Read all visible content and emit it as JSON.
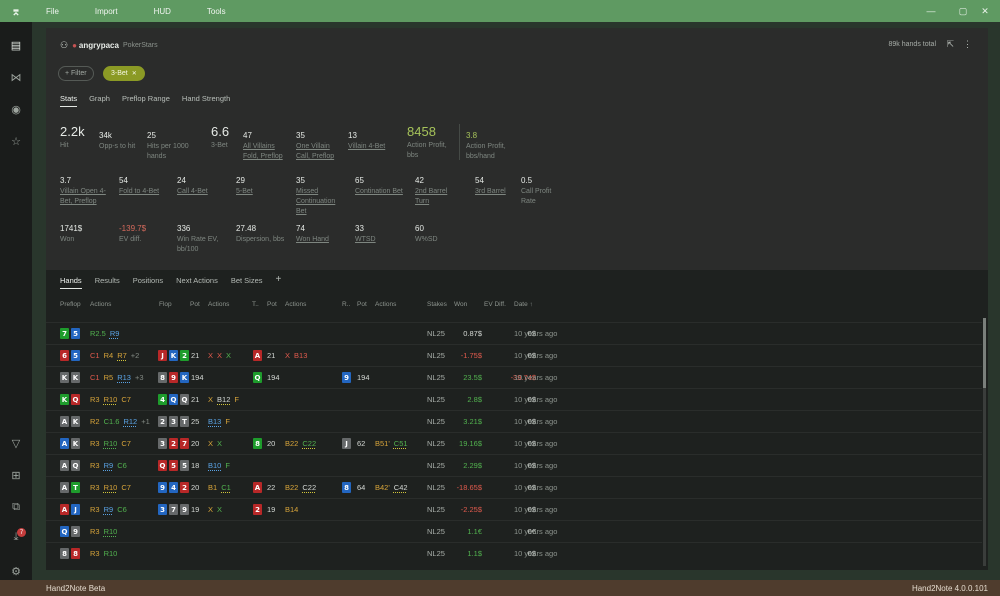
{
  "menubar": {
    "logo": "⌆",
    "items": [
      "File",
      "Import",
      "HUD",
      "Tools"
    ],
    "controls": [
      "—",
      "▢",
      "✕"
    ]
  },
  "statusbar": {
    "app_name": "Hand2Note Beta",
    "version": "Hand2Note 4.0.0.101"
  },
  "sidebar": {
    "badge": "7"
  },
  "header": {
    "player": "angrypaca",
    "site": "PokerStars",
    "hands_total": "89k hands total"
  },
  "filters": {
    "add_filter": "+ Filter",
    "chip": "3-Bet",
    "chip_close": "✕"
  },
  "top_tabs": [
    "Stats",
    "Graph",
    "Preflop Range",
    "Hand Strength"
  ],
  "stats": {
    "row1": [
      {
        "value": "2.2k",
        "label": "Hit"
      },
      {
        "value": "34k",
        "label": "Opp-s to hit"
      },
      {
        "value": "25",
        "label": "Hits per 1000 hands"
      },
      {
        "value": "6.6",
        "label": "3-Bet"
      },
      {
        "value": "47",
        "label": "All Villains Fold, Preflop"
      },
      {
        "value": "35",
        "label": "One Villain Call, Preflop"
      },
      {
        "value": "13",
        "label": "Villain 4-Bet"
      },
      {
        "value": "8458",
        "label": "Action Profit, bbs"
      },
      {
        "value": "3.8",
        "label": "Action Profit, bbs/hand"
      }
    ],
    "row2": [
      {
        "value": "3.7",
        "label": "Villain Open 4-Bet, Preflop"
      },
      {
        "value": "54",
        "label": "Fold to 4-Bet"
      },
      {
        "value": "24",
        "label": "Call 4-Bet"
      },
      {
        "value": "29",
        "label": "5-Bet"
      },
      {
        "value": "35",
        "label": "Missed Continuation Bet"
      },
      {
        "value": "65",
        "label": "Contination Bet"
      },
      {
        "value": "42",
        "label": "2nd Barrel Turn"
      },
      {
        "value": "54",
        "label": "3rd Barrel"
      },
      {
        "value": "0.5",
        "label": "Call Profit Rate"
      }
    ],
    "row3": [
      {
        "value": "1741$",
        "label": "Won"
      },
      {
        "value": "-139.7$",
        "label": "EV diff."
      },
      {
        "value": "336",
        "label": "Win Rate EV, bb/100"
      },
      {
        "value": "27.48",
        "label": "Dispersion, bbs"
      },
      {
        "value": "74",
        "label": "Won Hand"
      },
      {
        "value": "33",
        "label": "WTSD"
      },
      {
        "value": "60",
        "label": "W%SD"
      }
    ]
  },
  "bottom_tabs": [
    "Hands",
    "Results",
    "Positions",
    "Next Actions",
    "Bet Sizes",
    "+"
  ],
  "columns": [
    "Preflop",
    "Actions",
    "Flop",
    "Pot",
    "Actions",
    "T..",
    "Pot",
    "Actions",
    "R..",
    "Pot",
    "Actions",
    "Stakes",
    "Won",
    "EV Diff.",
    "Date ↑"
  ],
  "rows": [
    {
      "cards": [
        [
          "7",
          "green"
        ],
        [
          "5",
          "blue"
        ]
      ],
      "pre": [
        [
          "R2.5",
          "green",
          ""
        ],
        [
          "R9",
          "blue",
          "u-blue"
        ]
      ],
      "flop": [],
      "fpot": "",
      "fact": [],
      "turn": [],
      "tpot": "",
      "tact": [],
      "river": [],
      "rpot": "",
      "ract": [],
      "stakes": "NL25",
      "won": "0.87$",
      "won_color": "a-white",
      "ev": "0$",
      "ev_color": "a-white",
      "date": "10 years ago"
    },
    {
      "cards": [
        [
          "6",
          "red"
        ],
        [
          "5",
          "blue"
        ]
      ],
      "pre": [
        [
          "C1",
          "red",
          ""
        ],
        [
          "R4",
          "orange",
          ""
        ],
        [
          "R7",
          "orange",
          "u-yellow"
        ],
        [
          "+2",
          "muted",
          ""
        ]
      ],
      "flop": [
        [
          "J",
          "red"
        ],
        [
          "K",
          "blue"
        ],
        [
          "2",
          "green"
        ]
      ],
      "fpot": "21",
      "fact": [
        [
          "X",
          "red",
          ""
        ],
        [
          "X",
          "red",
          ""
        ],
        [
          "X",
          "green",
          ""
        ]
      ],
      "turn": [
        [
          "A",
          "red"
        ]
      ],
      "tpot": "21",
      "tact": [
        [
          "X",
          "red",
          ""
        ],
        [
          "B13",
          "red",
          ""
        ]
      ],
      "river": [],
      "rpot": "",
      "ract": [],
      "stakes": "NL25",
      "won": "-1.75$",
      "won_color": "a-red",
      "ev": "0$",
      "ev_color": "a-white",
      "date": "10 years ago"
    },
    {
      "cards": [
        [
          "K",
          "gray"
        ],
        [
          "K",
          "gray"
        ]
      ],
      "pre": [
        [
          "C1",
          "red",
          ""
        ],
        [
          "R5",
          "orange",
          ""
        ],
        [
          "R13",
          "blue",
          "u-blue"
        ],
        [
          "+3",
          "muted",
          ""
        ]
      ],
      "flop": [
        [
          "8",
          "gray"
        ],
        [
          "9",
          "red"
        ],
        [
          "K",
          "blue"
        ]
      ],
      "fpot": "194",
      "fact": [],
      "turn": [
        [
          "Q",
          "green"
        ]
      ],
      "tpot": "194",
      "tact": [],
      "river": [
        [
          "9",
          "blue"
        ]
      ],
      "rpot": "194",
      "ract": [],
      "stakes": "NL25",
      "won": "23.5$",
      "won_color": "a-green",
      "ev": "-39.74$",
      "ev_color": "a-red",
      "date": "10 years ago"
    },
    {
      "cards": [
        [
          "K",
          "green"
        ],
        [
          "Q",
          "red"
        ]
      ],
      "pre": [
        [
          "R3",
          "orange",
          ""
        ],
        [
          "R10",
          "orange",
          "u-yellow"
        ],
        [
          "C7",
          "orange",
          ""
        ]
      ],
      "flop": [
        [
          "4",
          "green"
        ],
        [
          "Q",
          "blue"
        ],
        [
          "Q",
          "gray"
        ]
      ],
      "fpot": "21",
      "fact": [
        [
          "X",
          "orange",
          ""
        ],
        [
          "B12",
          "white",
          "u-yellow"
        ],
        [
          "F",
          "orange",
          ""
        ]
      ],
      "turn": [],
      "tpot": "",
      "tact": [],
      "river": [],
      "rpot": "",
      "ract": [],
      "stakes": "NL25",
      "won": "2.8$",
      "won_color": "a-green",
      "ev": "0$",
      "ev_color": "a-white",
      "date": "10 years ago"
    },
    {
      "cards": [
        [
          "A",
          "gray"
        ],
        [
          "K",
          "gray"
        ]
      ],
      "pre": [
        [
          "R2",
          "orange",
          ""
        ],
        [
          "C1.6",
          "green",
          ""
        ],
        [
          "R12",
          "blue",
          "u-blue"
        ],
        [
          "+1",
          "muted",
          ""
        ]
      ],
      "flop": [
        [
          "2",
          "gray"
        ],
        [
          "3",
          "gray"
        ],
        [
          "T",
          "gray"
        ]
      ],
      "fpot": "25",
      "fact": [
        [
          "B13",
          "blue",
          "u-blue"
        ],
        [
          "F",
          "orange",
          ""
        ]
      ],
      "turn": [],
      "tpot": "",
      "tact": [],
      "river": [],
      "rpot": "",
      "ract": [],
      "stakes": "NL25",
      "won": "3.21$",
      "won_color": "a-green",
      "ev": "0$",
      "ev_color": "a-white",
      "date": "10 years ago"
    },
    {
      "cards": [
        [
          "A",
          "blue"
        ],
        [
          "K",
          "gray"
        ]
      ],
      "pre": [
        [
          "R3",
          "orange",
          ""
        ],
        [
          "R10",
          "green",
          "u-green"
        ],
        [
          "C7",
          "orange",
          ""
        ]
      ],
      "flop": [
        [
          "3",
          "gray"
        ],
        [
          "2",
          "red"
        ],
        [
          "7",
          "red"
        ]
      ],
      "fpot": "20",
      "fact": [
        [
          "X",
          "orange",
          ""
        ],
        [
          "X",
          "green",
          ""
        ]
      ],
      "turn": [
        [
          "8",
          "green"
        ]
      ],
      "tpot": "20",
      "tact": [
        [
          "B22",
          "orange",
          ""
        ],
        [
          "C22",
          "green",
          "u-yellow"
        ]
      ],
      "river": [
        [
          "J",
          "gray"
        ]
      ],
      "rpot": "62",
      "ract": [
        [
          "B51'",
          "orange",
          ""
        ],
        [
          "C51",
          "green",
          "u-yellow"
        ]
      ],
      "stakes": "NL25",
      "won": "19.16$",
      "won_color": "a-green",
      "ev": "0$",
      "ev_color": "a-white",
      "date": "10 years ago"
    },
    {
      "cards": [
        [
          "A",
          "gray"
        ],
        [
          "Q",
          "gray"
        ]
      ],
      "pre": [
        [
          "R3",
          "orange",
          ""
        ],
        [
          "R9",
          "blue",
          "u-blue"
        ],
        [
          "C6",
          "green",
          ""
        ]
      ],
      "flop": [
        [
          "Q",
          "red"
        ],
        [
          "5",
          "red"
        ],
        [
          "5",
          "gray"
        ]
      ],
      "fpot": "18",
      "fact": [
        [
          "B10",
          "blue",
          "u-blue"
        ],
        [
          "F",
          "green",
          ""
        ]
      ],
      "turn": [],
      "tpot": "",
      "tact": [],
      "river": [],
      "rpot": "",
      "ract": [],
      "stakes": "NL25",
      "won": "2.29$",
      "won_color": "a-green",
      "ev": "0$",
      "ev_color": "a-white",
      "date": "10 years ago"
    },
    {
      "cards": [
        [
          "A",
          "gray"
        ],
        [
          "T",
          "green"
        ]
      ],
      "pre": [
        [
          "R3",
          "orange",
          ""
        ],
        [
          "R10",
          "orange",
          "u-yellow"
        ],
        [
          "C7",
          "orange",
          ""
        ]
      ],
      "flop": [
        [
          "9",
          "blue"
        ],
        [
          "4",
          "blue"
        ],
        [
          "2",
          "red"
        ]
      ],
      "fpot": "20",
      "fact": [
        [
          "B1",
          "orange",
          ""
        ],
        [
          "C1",
          "green",
          "u-yellow"
        ]
      ],
      "turn": [
        [
          "A",
          "red"
        ]
      ],
      "tpot": "22",
      "tact": [
        [
          "B22",
          "orange",
          ""
        ],
        [
          "C22",
          "white",
          "u-yellow"
        ]
      ],
      "river": [
        [
          "8",
          "blue"
        ]
      ],
      "rpot": "64",
      "ract": [
        [
          "B42'",
          "orange",
          ""
        ],
        [
          "C42",
          "white",
          "u-yellow"
        ]
      ],
      "stakes": "NL25",
      "won": "-18.65$",
      "won_color": "a-red",
      "ev": "0$",
      "ev_color": "a-white",
      "date": "10 years ago"
    },
    {
      "cards": [
        [
          "A",
          "red"
        ],
        [
          "J",
          "blue"
        ]
      ],
      "pre": [
        [
          "R3",
          "orange",
          ""
        ],
        [
          "R9",
          "blue",
          "u-blue"
        ],
        [
          "C6",
          "green",
          ""
        ]
      ],
      "flop": [
        [
          "3",
          "blue"
        ],
        [
          "7",
          "gray"
        ],
        [
          "9",
          "gray"
        ]
      ],
      "fpot": "19",
      "fact": [
        [
          "X",
          "orange",
          ""
        ],
        [
          "X",
          "green",
          ""
        ]
      ],
      "turn": [
        [
          "2",
          "red"
        ]
      ],
      "tpot": "19",
      "tact": [
        [
          "B14",
          "orange",
          ""
        ]
      ],
      "river": [],
      "rpot": "",
      "ract": [],
      "stakes": "NL25",
      "won": "-2.25$",
      "won_color": "a-red",
      "ev": "0$",
      "ev_color": "a-white",
      "date": "10 years ago"
    },
    {
      "cards": [
        [
          "Q",
          "blue"
        ],
        [
          "9",
          "gray"
        ]
      ],
      "pre": [
        [
          "R3",
          "orange",
          ""
        ],
        [
          "R10",
          "green",
          "u-green"
        ]
      ],
      "flop": [],
      "fpot": "",
      "fact": [],
      "turn": [],
      "tpot": "",
      "tact": [],
      "river": [],
      "rpot": "",
      "ract": [],
      "stakes": "NL25",
      "won": "1.1€",
      "won_color": "a-green",
      "ev": "0€",
      "ev_color": "a-white",
      "date": "10 years ago"
    },
    {
      "cards": [
        [
          "8",
          "gray"
        ],
        [
          "8",
          "red"
        ]
      ],
      "pre": [
        [
          "R3",
          "orange",
          ""
        ],
        [
          "R10",
          "green",
          ""
        ]
      ],
      "flop": [],
      "fpot": "",
      "fact": [],
      "turn": [],
      "tpot": "",
      "tact": [],
      "river": [],
      "rpot": "",
      "ract": [],
      "stakes": "NL25",
      "won": "1.1$",
      "won_color": "a-green",
      "ev": "0$",
      "ev_color": "a-white",
      "date": "10 years ago"
    }
  ]
}
